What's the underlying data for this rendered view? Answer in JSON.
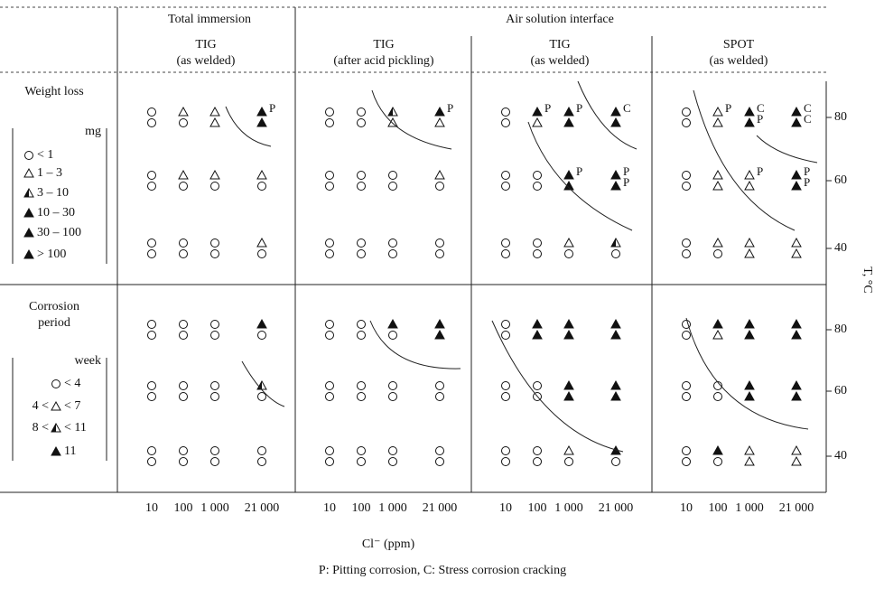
{
  "headers": {
    "left": "Total immersion",
    "right": "Air solution interface"
  },
  "columns": [
    {
      "method": "TIG",
      "condition": "(as welded)"
    },
    {
      "method": "TIG",
      "condition": "(after acid pickling)"
    },
    {
      "method": "TIG",
      "condition": "(as welded)"
    },
    {
      "method": "SPOT",
      "condition": "(as welded)"
    }
  ],
  "x_ticks": [
    "10",
    "100",
    "1 000",
    "21 000"
  ],
  "x_label": "Cl⁻ (ppm)",
  "y_ticks": [
    "80",
    "60",
    "40"
  ],
  "y_label": "T, °C",
  "footnote": "P: Pitting corrosion, C: Stress corrosion cracking",
  "rows": [
    {
      "title": [
        "Weight loss"
      ],
      "unit": "mg",
      "legend": [
        {
          "sym": "o",
          "post": "< 1"
        },
        {
          "sym": "t",
          "post": "1 – 3"
        },
        {
          "sym": "h",
          "post": "3 – 10"
        },
        {
          "sym": "f",
          "post": "10 – 30"
        },
        {
          "sym": "f",
          "post": "30 – 100"
        },
        {
          "sym": "f",
          "post": "> 100"
        }
      ]
    },
    {
      "title": [
        "Corrosion",
        "period"
      ],
      "unit": "week",
      "legend": [
        {
          "sym": "o",
          "post": "< 4"
        },
        {
          "pre": "4 <",
          "sym": "t",
          "post": "< 7"
        },
        {
          "pre": "8 <",
          "sym": "h",
          "post": "< 11"
        },
        {
          "sym": "f",
          "post": "11"
        }
      ]
    }
  ],
  "panels": [
    [
      [
        [
          "oo",
          "to",
          "tt",
          {
            "sym": "ff",
            "note": [
              "P"
            ]
          }
        ],
        [
          "oo",
          "to",
          "to",
          "to"
        ],
        [
          "oo",
          "oo",
          "oo",
          "to"
        ]
      ],
      [
        [
          "oo",
          "oo",
          "ht",
          {
            "sym": "ft",
            "note": [
              "P"
            ]
          }
        ],
        [
          "oo",
          "oo",
          "oo",
          "to"
        ],
        [
          "oo",
          "oo",
          "oo",
          "oo"
        ]
      ],
      [
        [
          "oo",
          {
            "sym": "ft",
            "note": [
              "P"
            ]
          },
          {
            "sym": "ff",
            "note": [
              "P"
            ]
          },
          {
            "sym": "ff",
            "note": [
              "C"
            ]
          }
        ],
        [
          "oo",
          "oo",
          {
            "sym": "ff",
            "note": [
              "P"
            ]
          },
          {
            "sym": "ff",
            "note": [
              "P",
              "P"
            ]
          }
        ],
        [
          "oo",
          "oo",
          "to",
          "ho"
        ]
      ],
      [
        [
          "oo",
          {
            "sym": "tt",
            "note": [
              "P"
            ]
          },
          {
            "sym": "ff",
            "note": [
              "C",
              "P"
            ]
          },
          {
            "sym": "ff",
            "note": [
              "C",
              "C"
            ]
          }
        ],
        [
          "oo",
          "tt",
          {
            "sym": "tt",
            "note": [
              "P"
            ]
          },
          {
            "sym": "ff",
            "note": [
              "P",
              "P"
            ]
          }
        ],
        [
          "oo",
          "to",
          "tt",
          "tt"
        ]
      ]
    ],
    [
      [
        [
          "oo",
          "oo",
          "oo",
          "fo"
        ],
        [
          "oo",
          "oo",
          "oo",
          "ho"
        ],
        [
          "oo",
          "oo",
          "oo",
          "oo"
        ]
      ],
      [
        [
          "oo",
          "oo",
          "fo",
          "ff"
        ],
        [
          "oo",
          "oo",
          "oo",
          "oo"
        ],
        [
          "oo",
          "oo",
          "oo",
          "oo"
        ]
      ],
      [
        [
          "oo",
          "ff",
          "ff",
          "ff"
        ],
        [
          "oo",
          "oo",
          "ff",
          "ff"
        ],
        [
          "oo",
          "oo",
          "to",
          "fo"
        ]
      ],
      [
        [
          "oo",
          "ft",
          "ff",
          "ff"
        ],
        [
          "oo",
          "oo",
          "ff",
          "ff"
        ],
        [
          "oo",
          "fo",
          "tt",
          "tt"
        ]
      ]
    ]
  ]
}
